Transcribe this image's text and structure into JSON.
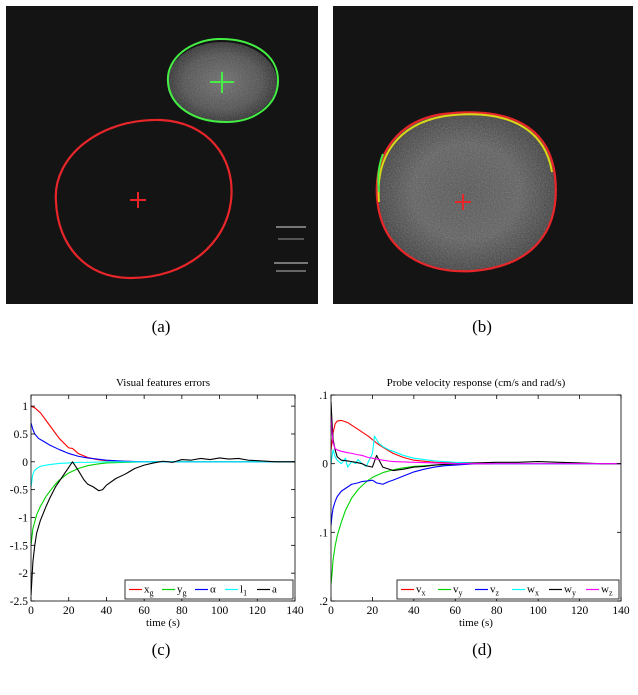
{
  "subfigure_labels": [
    "(a)",
    "(b)",
    "(c)",
    "(d)"
  ],
  "colors": {
    "red": "#ff0000",
    "green": "#00d400",
    "blue": "#0000ff",
    "cyan": "#00ffff",
    "black": "#000000",
    "magenta": "#ff00ff",
    "image_background": "#141414",
    "image_contour_red": "#e8262a",
    "image_contour_green": "#44ee44",
    "image_contour_yellow": "#d8d818"
  },
  "chart_data": [
    {
      "type": "line",
      "title": "Visual features errors",
      "xlabel": "time (s)",
      "ylabel": "",
      "xlim": [
        0,
        140
      ],
      "ylim": [
        -2.5,
        1.2
      ],
      "xticks": [
        0,
        20,
        40,
        60,
        80,
        100,
        120,
        140
      ],
      "xtick_labels": [
        "0",
        "20",
        "40",
        "60",
        "80",
        "100",
        "120",
        "140"
      ],
      "yticks": [
        -2.5,
        -2,
        -1.5,
        -1,
        -0.5,
        0,
        0.5,
        1
      ],
      "ytick_labels": [
        "-2.5",
        "-2",
        "-1.5",
        "-1",
        "-0.5",
        "0",
        "0.5",
        "1"
      ],
      "grid": false,
      "legend_position": "bottom-right",
      "legend_orientation": "horizontal",
      "series": [
        {
          "name": "x_g",
          "legend_main": "x",
          "legend_sub": "g",
          "color": "#ff0000",
          "x": [
            0,
            2,
            5,
            10,
            15,
            20,
            22,
            25,
            30,
            35,
            40,
            50,
            60,
            70,
            80,
            100,
            120,
            140
          ],
          "y": [
            1.0,
            0.97,
            0.88,
            0.65,
            0.42,
            0.25,
            0.24,
            0.15,
            0.08,
            0.04,
            0.02,
            0.01,
            0.0,
            0.0,
            0.0,
            0.0,
            0.0,
            0.0
          ]
        },
        {
          "name": "y_g",
          "legend_main": "y",
          "legend_sub": "g",
          "color": "#00d400",
          "x": [
            0,
            1,
            3,
            5,
            8,
            10,
            13,
            15,
            18,
            20,
            25,
            30,
            35,
            40,
            50,
            60,
            70,
            80,
            100,
            120,
            140
          ],
          "y": [
            -1.5,
            -1.2,
            -0.95,
            -0.8,
            -0.62,
            -0.53,
            -0.4,
            -0.33,
            -0.25,
            -0.2,
            -0.12,
            -0.07,
            -0.04,
            -0.02,
            -0.01,
            0.0,
            0.0,
            0.0,
            0.0,
            0.0,
            0.0
          ]
        },
        {
          "name": "alpha",
          "legend_main": "α",
          "legend_sub": "",
          "color": "#0000ff",
          "x": [
            0,
            1,
            2,
            4,
            6,
            8,
            10,
            15,
            20,
            25,
            30,
            40,
            50,
            60,
            80,
            100,
            120,
            140
          ],
          "y": [
            0.7,
            0.58,
            0.5,
            0.42,
            0.38,
            0.34,
            0.3,
            0.22,
            0.15,
            0.1,
            0.07,
            0.03,
            0.01,
            0.0,
            0.0,
            0.0,
            0.0,
            0.0
          ]
        },
        {
          "name": "l_1",
          "legend_main": "l",
          "legend_sub": "1",
          "color": "#00ffff",
          "x": [
            0,
            1,
            2,
            3,
            5,
            8,
            10,
            15,
            20,
            25,
            30,
            40,
            50,
            60,
            80,
            100,
            120,
            140
          ],
          "y": [
            -0.45,
            -0.22,
            -0.15,
            -0.12,
            -0.08,
            -0.06,
            -0.05,
            -0.03,
            -0.02,
            -0.01,
            -0.01,
            0.0,
            0.0,
            0.0,
            0.0,
            0.0,
            0.0,
            0.0
          ]
        },
        {
          "name": "a",
          "legend_main": "a",
          "legend_sub": "",
          "color": "#000000",
          "x": [
            0,
            0.5,
            1,
            2,
            3,
            5,
            8,
            10,
            13,
            15,
            18,
            20,
            21,
            22,
            23,
            25,
            28,
            30,
            33,
            36,
            38,
            40,
            45,
            50,
            55,
            60,
            65,
            70,
            75,
            80,
            85,
            90,
            95,
            100,
            105,
            110,
            115,
            120,
            130,
            140
          ],
          "y": [
            -2.4,
            -2.1,
            -1.8,
            -1.5,
            -1.28,
            -1.05,
            -0.8,
            -0.65,
            -0.45,
            -0.35,
            -0.2,
            -0.1,
            -0.05,
            0.0,
            -0.05,
            -0.15,
            -0.32,
            -0.4,
            -0.45,
            -0.52,
            -0.5,
            -0.42,
            -0.3,
            -0.22,
            -0.12,
            -0.06,
            -0.02,
            0.01,
            -0.01,
            0.04,
            0.03,
            0.06,
            0.04,
            0.07,
            0.05,
            0.06,
            0.03,
            0.02,
            0.0,
            0.0
          ]
        }
      ]
    },
    {
      "type": "line",
      "title": "Probe velocity response (cm/s and rad/s)",
      "xlabel": "time (s)",
      "ylabel": "",
      "xlim": [
        0,
        140
      ],
      "ylim": [
        -0.2,
        0.1
      ],
      "xticks": [
        0,
        20,
        40,
        60,
        80,
        100,
        120,
        140
      ],
      "xtick_labels": [
        "0",
        "20",
        "40",
        "60",
        "80",
        "100",
        "120",
        "140"
      ],
      "yticks": [
        -0.2,
        -0.1,
        0,
        0.1
      ],
      "ytick_labels": [
        "-0.2",
        "-0.1",
        "0",
        "0.1"
      ],
      "grid": false,
      "legend_position": "bottom-right",
      "legend_orientation": "horizontal",
      "series": [
        {
          "name": "v_x",
          "legend_main": "v",
          "legend_sub": "x",
          "color": "#ff0000",
          "x": [
            0,
            1,
            2,
            3,
            5,
            8,
            10,
            13,
            15,
            18,
            20,
            22,
            25,
            30,
            35,
            40,
            50,
            60,
            70,
            80,
            100,
            120,
            140
          ],
          "y": [
            0.02,
            0.045,
            0.058,
            0.062,
            0.063,
            0.06,
            0.056,
            0.05,
            0.046,
            0.04,
            0.035,
            0.03,
            0.024,
            0.015,
            0.009,
            0.005,
            0.002,
            0.001,
            0.0,
            0.0,
            0.0,
            0.0,
            0.0
          ]
        },
        {
          "name": "v_y",
          "legend_main": "v",
          "legend_sub": "y",
          "color": "#00d400",
          "x": [
            0,
            0.5,
            1,
            2,
            3,
            5,
            7,
            10,
            13,
            15,
            18,
            20,
            25,
            30,
            35,
            40,
            50,
            60,
            70,
            80,
            100,
            120,
            140
          ],
          "y": [
            -0.175,
            -0.16,
            -0.14,
            -0.12,
            -0.105,
            -0.085,
            -0.068,
            -0.05,
            -0.038,
            -0.032,
            -0.024,
            -0.02,
            -0.013,
            -0.009,
            -0.006,
            -0.004,
            -0.002,
            -0.001,
            0.0,
            0.0,
            0.0,
            0.0,
            0.0
          ]
        },
        {
          "name": "v_z",
          "legend_main": "v",
          "legend_sub": "z",
          "color": "#0000ff",
          "x": [
            0,
            0.5,
            1,
            2,
            3,
            5,
            8,
            10,
            13,
            15,
            18,
            20,
            22,
            25,
            28,
            30,
            35,
            40,
            45,
            50,
            55,
            60,
            70,
            80,
            100,
            120,
            140
          ],
          "y": [
            -0.09,
            -0.075,
            -0.065,
            -0.055,
            -0.048,
            -0.04,
            -0.034,
            -0.03,
            -0.028,
            -0.026,
            -0.025,
            -0.024,
            -0.028,
            -0.03,
            -0.026,
            -0.024,
            -0.018,
            -0.012,
            -0.008,
            -0.005,
            -0.003,
            -0.002,
            0.0,
            0.0,
            0.0,
            0.0,
            0.0
          ]
        },
        {
          "name": "w_x",
          "legend_main": "w",
          "legend_sub": "x",
          "color": "#00ffff",
          "x": [
            0,
            1,
            2,
            3,
            5,
            7,
            8,
            10,
            12,
            13,
            15,
            17,
            20,
            21,
            22,
            23,
            25,
            28,
            30,
            35,
            40,
            50,
            60,
            70,
            80,
            100,
            120,
            140
          ],
          "y": [
            0.0,
            0.02,
            0.01,
            0.005,
            0.0,
            0.008,
            -0.005,
            0.003,
            0.0,
            0.006,
            0.0,
            -0.004,
            0.015,
            0.04,
            0.035,
            0.03,
            0.025,
            0.02,
            0.018,
            0.012,
            0.008,
            0.004,
            0.002,
            0.001,
            0.0,
            0.0,
            0.0,
            0.0
          ]
        },
        {
          "name": "w_y",
          "legend_main": "w",
          "legend_sub": "y",
          "color": "#000000",
          "x": [
            0,
            0.5,
            1,
            2,
            3,
            5,
            8,
            10,
            12,
            15,
            17,
            20,
            22,
            25,
            30,
            35,
            40,
            45,
            50,
            60,
            70,
            80,
            90,
            100,
            110,
            120,
            130,
            140
          ],
          "y": [
            0.09,
            0.06,
            0.035,
            0.02,
            0.01,
            0.005,
            0.004,
            0.003,
            0.002,
            0.0,
            -0.003,
            -0.005,
            0.012,
            -0.005,
            -0.01,
            -0.008,
            -0.005,
            -0.004,
            -0.002,
            0.0,
            0.001,
            0.002,
            0.002,
            0.003,
            0.002,
            0.001,
            0.0,
            0.0
          ]
        },
        {
          "name": "w_z",
          "legend_main": "w",
          "legend_sub": "z",
          "color": "#ff00ff",
          "x": [
            0,
            0.5,
            1,
            2,
            3,
            5,
            8,
            10,
            13,
            15,
            18,
            20,
            25,
            30,
            40,
            50,
            60,
            80,
            100,
            120,
            140
          ],
          "y": [
            0.07,
            0.045,
            0.03,
            0.022,
            0.02,
            0.018,
            0.016,
            0.015,
            0.013,
            0.012,
            0.009,
            0.008,
            0.005,
            0.003,
            0.002,
            0.001,
            0.0,
            0.0,
            0.0,
            0.0,
            0.0
          ]
        }
      ]
    }
  ]
}
